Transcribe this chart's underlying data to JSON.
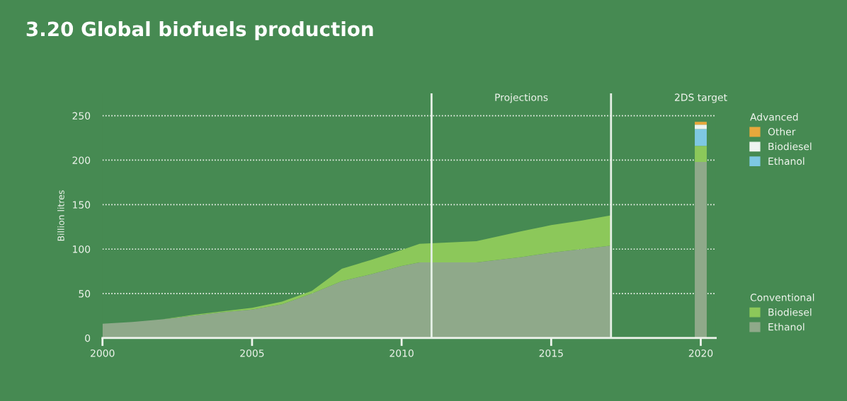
{
  "chart_data": {
    "type": "area",
    "title": "3.20 Global biofuels production",
    "ylabel": "Billion litres",
    "stacked": true,
    "x": [
      2000,
      2001,
      2002,
      2003,
      2004,
      2005,
      2006,
      2007,
      2008,
      2009,
      2010,
      2010.6,
      2012.5,
      2014,
      2015,
      2016,
      2017,
      2020
    ],
    "series": [
      {
        "name": "Ethanol",
        "color": "#8fa98a",
        "values": [
          16,
          18,
          21,
          25,
          29,
          32,
          38,
          50,
          64,
          72,
          81,
          85,
          85,
          91,
          96,
          100,
          104,
          null
        ]
      },
      {
        "name": "Biodiesel",
        "color": "#8cc85a",
        "values": [
          0,
          0,
          0,
          1,
          1,
          2,
          3,
          3,
          14,
          16,
          18,
          21,
          24,
          29,
          31,
          32,
          34,
          null
        ]
      },
      {
        "type": "bar",
        "color": "#8fa98a",
        "values": [
          null,
          null,
          null,
          null,
          null,
          null,
          null,
          null,
          null,
          null,
          null,
          null,
          null,
          null,
          null,
          null,
          null,
          198
        ]
      },
      {
        "type": "bar",
        "color": "#8cc85a",
        "values": [
          null,
          null,
          null,
          null,
          null,
          null,
          null,
          null,
          null,
          null,
          null,
          null,
          null,
          null,
          null,
          null,
          null,
          18
        ]
      },
      {
        "name": "Ethanol",
        "type": "bar",
        "color": "#7ec8e3",
        "values": [
          null,
          null,
          null,
          null,
          null,
          null,
          null,
          null,
          null,
          null,
          null,
          null,
          null,
          null,
          null,
          null,
          null,
          19
        ]
      },
      {
        "name": "Biodiesel",
        "type": "bar",
        "color": "#eef4f0",
        "values": [
          null,
          null,
          null,
          null,
          null,
          null,
          null,
          null,
          null,
          null,
          null,
          null,
          null,
          null,
          null,
          null,
          null,
          5
        ]
      },
      {
        "name": "Other",
        "type": "bar",
        "color": "#e8a83c",
        "values": [
          null,
          null,
          null,
          null,
          null,
          null,
          null,
          null,
          null,
          null,
          null,
          null,
          null,
          null,
          null,
          null,
          null,
          3
        ]
      }
    ],
    "xlim": [
      2000,
      2020.5
    ],
    "xticks": [
      2000,
      2005,
      2010,
      2015,
      2020
    ],
    "ylim": [
      0,
      275
    ],
    "yticks": [
      0,
      50,
      100,
      150,
      200,
      250
    ],
    "grid": "y",
    "legend": "right",
    "ref_lines": [
      {
        "axis": "x",
        "value": 2011,
        "label": null,
        "color": "#e6f0e6"
      },
      {
        "axis": "x",
        "value": 2017,
        "label": null,
        "color": "#e6f0e6"
      }
    ],
    "annotations": [
      "Projections",
      "2DS target",
      "Advanced",
      "Conventional"
    ]
  }
}
